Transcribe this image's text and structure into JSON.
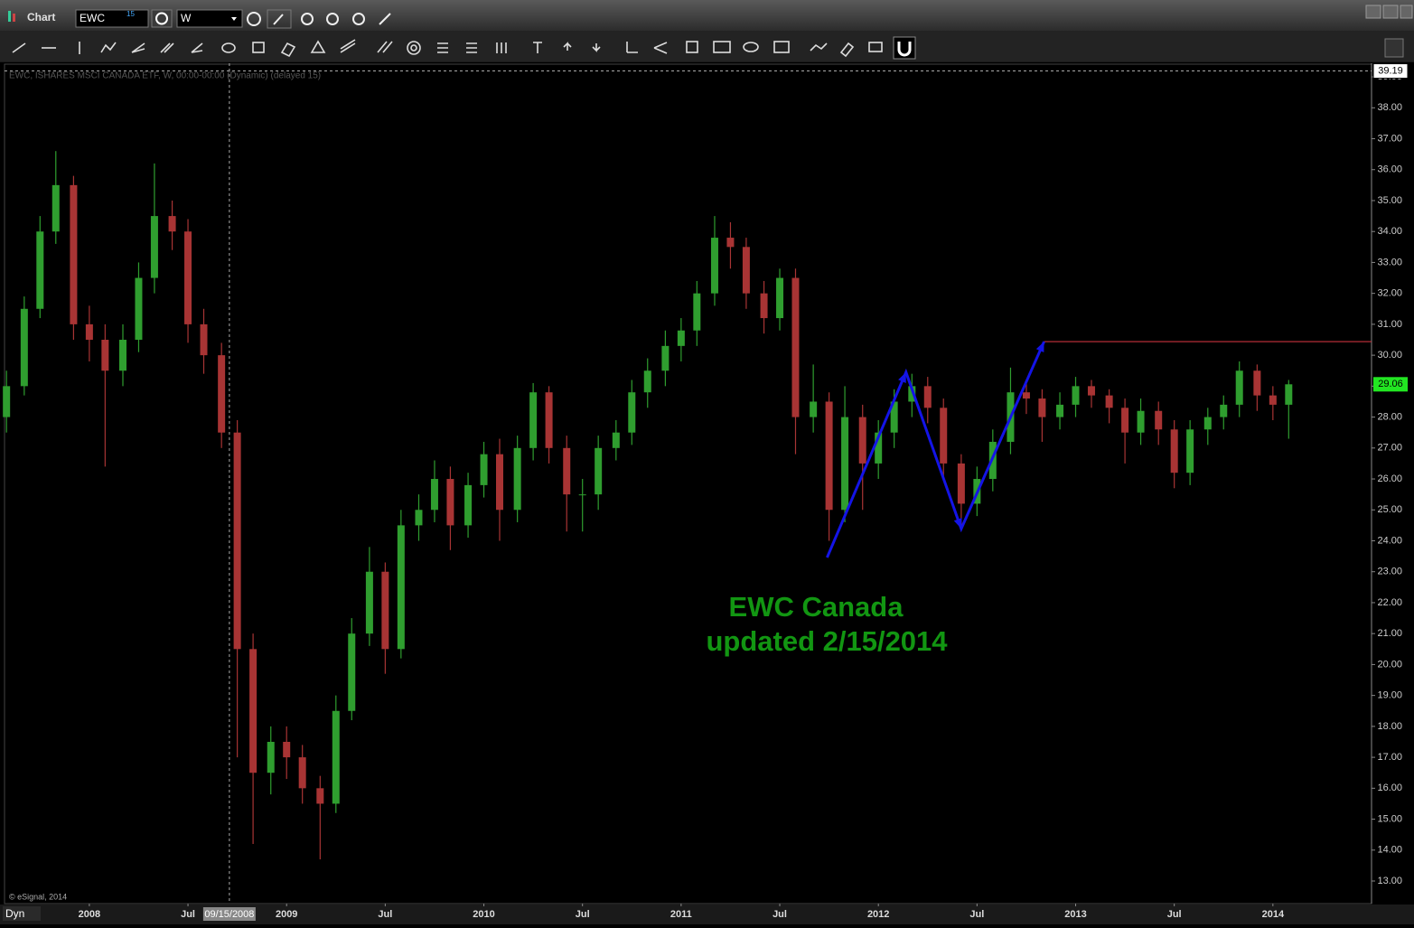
{
  "window": {
    "title": "Chart",
    "symbol": "EWC",
    "symbol_badge": "15",
    "interval": "W",
    "mode": "Dyn"
  },
  "chart_data": {
    "type": "candlestick",
    "subtitle": "EWC, ISHARES MSCI CANADA ETF, W, 00:00-00:00 (Dynamic) (delayed 15)",
    "copyright": "© eSignal, 2014",
    "annotation": [
      "EWC Canada",
      "updated 2/15/2014"
    ],
    "x": [
      2007.58,
      2007.67,
      2007.75,
      2007.83,
      2007.92,
      2008.0,
      2008.08,
      2008.17,
      2008.25,
      2008.33,
      2008.42,
      2008.5,
      2008.58,
      2008.67,
      2008.75,
      2008.83,
      2008.92,
      2009.0,
      2009.08,
      2009.17,
      2009.25,
      2009.33,
      2009.42,
      2009.5,
      2009.58,
      2009.67,
      2009.75,
      2009.83,
      2009.92,
      2010.0,
      2010.08,
      2010.17,
      2010.25,
      2010.33,
      2010.42,
      2010.5,
      2010.58,
      2010.67,
      2010.75,
      2010.83,
      2010.92,
      2011.0,
      2011.08,
      2011.17,
      2011.25,
      2011.33,
      2011.42,
      2011.5,
      2011.58,
      2011.67,
      2011.75,
      2011.83,
      2011.92,
      2012.0,
      2012.08,
      2012.17,
      2012.25,
      2012.33,
      2012.42,
      2012.5,
      2012.58,
      2012.67,
      2012.75,
      2012.83,
      2012.92,
      2013.0,
      2013.08,
      2013.17,
      2013.25,
      2013.33,
      2013.42,
      2013.5,
      2013.58,
      2013.67,
      2013.75,
      2013.83,
      2013.92,
      2014.0,
      2014.08
    ],
    "open": [
      28.0,
      29.0,
      31.5,
      34.0,
      35.5,
      31.0,
      30.5,
      29.5,
      30.5,
      32.5,
      34.5,
      34.0,
      31.0,
      30.0,
      27.5,
      20.5,
      16.5,
      17.5,
      17.0,
      16.0,
      15.5,
      18.5,
      21.0,
      23.0,
      20.5,
      24.5,
      25.0,
      26.0,
      24.5,
      25.8,
      26.8,
      25.0,
      27.0,
      28.8,
      27.0,
      25.5,
      25.5,
      27.0,
      27.5,
      28.8,
      29.5,
      30.3,
      30.8,
      32.0,
      33.8,
      33.5,
      32.0,
      31.2,
      32.5,
      28.0,
      28.5,
      25.0,
      28.0,
      26.5,
      27.5,
      28.5,
      29.0,
      28.3,
      26.5,
      25.2,
      26.0,
      27.2,
      28.8,
      28.6,
      28.0,
      28.4,
      29.0,
      28.7,
      28.3,
      27.5,
      28.2,
      27.6,
      26.2,
      27.6,
      28.0,
      28.4,
      29.5,
      28.7,
      28.4
    ],
    "high": [
      29.5,
      31.9,
      34.5,
      36.6,
      35.8,
      31.6,
      31.0,
      31.0,
      33.0,
      36.2,
      35.0,
      34.4,
      31.5,
      30.4,
      27.9,
      21.0,
      18.0,
      18.0,
      17.4,
      16.4,
      19.0,
      21.5,
      23.8,
      23.3,
      25.0,
      25.5,
      26.6,
      26.4,
      26.2,
      27.2,
      27.3,
      27.4,
      29.1,
      29.0,
      27.4,
      26.0,
      27.4,
      27.9,
      29.2,
      29.9,
      30.8,
      31.2,
      32.4,
      34.5,
      34.3,
      33.8,
      32.4,
      32.8,
      32.8,
      29.7,
      28.8,
      29.0,
      28.4,
      27.9,
      28.9,
      29.4,
      29.3,
      28.6,
      26.8,
      26.4,
      27.6,
      29.6,
      29.2,
      28.9,
      28.8,
      29.3,
      29.2,
      28.9,
      28.6,
      28.6,
      28.5,
      27.9,
      27.9,
      28.3,
      28.7,
      29.8,
      29.7,
      29.0,
      29.2
    ],
    "low": [
      27.5,
      28.7,
      31.2,
      33.6,
      30.5,
      29.8,
      26.4,
      29.0,
      30.1,
      32.0,
      33.4,
      30.4,
      29.4,
      27.0,
      17.0,
      14.2,
      15.8,
      16.3,
      15.5,
      13.7,
      15.2,
      18.2,
      20.6,
      19.7,
      20.2,
      24.0,
      24.6,
      23.7,
      24.1,
      25.4,
      24.0,
      24.6,
      26.6,
      26.5,
      24.3,
      24.3,
      25.0,
      26.6,
      27.1,
      28.3,
      29.0,
      29.8,
      30.3,
      31.6,
      32.8,
      31.5,
      30.7,
      30.8,
      26.8,
      27.5,
      24.0,
      24.6,
      25.0,
      26.0,
      27.0,
      28.0,
      27.8,
      26.0,
      24.5,
      24.8,
      25.6,
      26.8,
      28.1,
      27.2,
      27.6,
      28.0,
      28.3,
      27.8,
      26.5,
      27.1,
      27.1,
      25.7,
      25.8,
      27.1,
      27.6,
      28.0,
      28.2,
      27.9,
      27.3
    ],
    "close": [
      29.0,
      31.5,
      34.0,
      35.5,
      31.0,
      30.5,
      29.5,
      30.5,
      32.5,
      34.5,
      34.0,
      31.0,
      30.0,
      27.5,
      20.5,
      16.5,
      17.5,
      17.0,
      16.0,
      15.5,
      18.5,
      21.0,
      23.0,
      20.5,
      24.5,
      25.0,
      26.0,
      24.5,
      25.8,
      26.8,
      25.0,
      27.0,
      28.8,
      27.0,
      25.5,
      25.5,
      27.0,
      27.5,
      28.8,
      29.5,
      30.3,
      30.8,
      32.0,
      33.8,
      33.5,
      32.0,
      31.2,
      32.5,
      28.0,
      28.5,
      25.0,
      28.0,
      26.5,
      27.5,
      28.5,
      29.0,
      28.3,
      26.5,
      25.2,
      26.0,
      27.2,
      28.8,
      28.6,
      28.0,
      28.4,
      29.0,
      28.7,
      28.3,
      27.5,
      28.2,
      27.6,
      26.2,
      27.6,
      28.0,
      28.4,
      29.5,
      28.7,
      28.4,
      29.06
    ],
    "up_color": "#2f9e2f",
    "down_color": "#a83434",
    "xlim": [
      2007.57,
      2014.5
    ],
    "xticks": [
      2008,
      {
        "value": 2008.5,
        "label": "Jul"
      },
      2009,
      {
        "value": 2009.5,
        "label": "Jul"
      },
      2010,
      {
        "value": 2010.5,
        "label": "Jul"
      },
      2011,
      {
        "value": 2011.5,
        "label": "Jul"
      },
      2012,
      {
        "value": 2012.5,
        "label": "Jul"
      },
      2013,
      {
        "value": 2013.5,
        "label": "Jul"
      },
      2014
    ],
    "ylim": [
      12.27,
      39.44
    ],
    "yticks": [
      {
        "value": 13,
        "label": "13.00"
      },
      {
        "value": 14,
        "label": "14.00"
      },
      {
        "value": 15,
        "label": "15.00"
      },
      {
        "value": 16,
        "label": "16.00"
      },
      {
        "value": 17,
        "label": "17.00"
      },
      {
        "value": 18,
        "label": "18.00"
      },
      {
        "value": 19,
        "label": "19.00"
      },
      {
        "value": 20,
        "label": "20.00"
      },
      {
        "value": 21,
        "label": "21.00"
      },
      {
        "value": 22,
        "label": "22.00"
      },
      {
        "value": 23,
        "label": "23.00"
      },
      {
        "value": 24,
        "label": "24.00"
      },
      {
        "value": 25,
        "label": "25.00"
      },
      {
        "value": 26,
        "label": "26.00"
      },
      {
        "value": 27,
        "label": "27.00"
      },
      {
        "value": 28,
        "label": "28.00"
      },
      {
        "value": 29,
        "label": "29.00"
      },
      {
        "value": 30,
        "label": "30.00"
      },
      {
        "value": 31,
        "label": "31.00"
      },
      {
        "value": 32,
        "label": "32.00"
      },
      {
        "value": 33,
        "label": "33.00"
      },
      {
        "value": 34,
        "label": "34.00"
      },
      {
        "value": 35,
        "label": "35.00"
      },
      {
        "value": 36,
        "label": "36.00"
      },
      {
        "value": 37,
        "label": "37.00"
      },
      {
        "value": 38,
        "label": "38.00"
      },
      {
        "value": 39,
        "label": "39.00"
      }
    ],
    "last_price": 29.06,
    "last_price_color": "#22e622",
    "crosshair": {
      "x": 2008.71,
      "x_label": "09/15/2008",
      "y": 39.19
    },
    "resistance": {
      "y": 30.44,
      "x_start": 2012.84,
      "color": "#c8323c"
    },
    "trend_arrows": {
      "x": [
        2011.74,
        2012.14,
        2012.42,
        2012.84
      ],
      "y": [
        23.46,
        29.45,
        24.39,
        30.44
      ],
      "color": "#1414e6"
    },
    "annotation_color": "#129612"
  }
}
